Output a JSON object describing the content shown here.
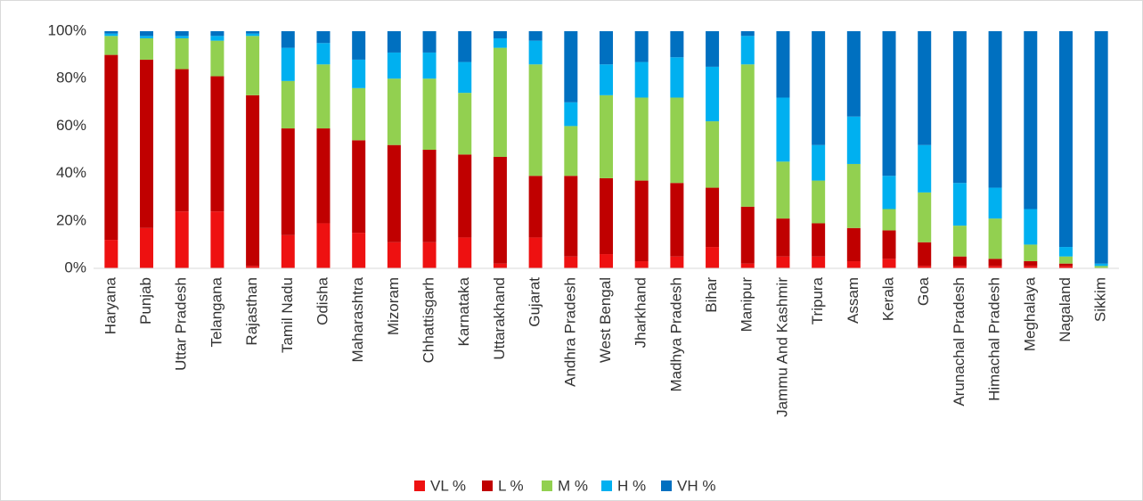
{
  "chart_data": {
    "type": "stacked_bar_100",
    "categories": [
      "Haryana",
      "Punjab",
      "Uttar Pradesh",
      "Telangana",
      "Rajasthan",
      "Tamil Nadu",
      "Odisha",
      "Maharashtra",
      "Mizoram",
      "Chhattisgarh",
      "Karnataka",
      "Uttarakhand",
      "Gujarat",
      "Andhra Pradesh",
      "West Bengal",
      "Jharkhand",
      "Madhya Pradesh",
      "Bihar",
      "Manipur",
      "Jammu And Kashmir",
      "Tripura",
      "Assam",
      "Kerala",
      "Goa",
      "Arunachal Pradesh",
      "Himachal Pradesh",
      "Meghalaya",
      "Nagaland",
      "Sikkim"
    ],
    "series": [
      {
        "name": "VL %",
        "color": "#ee1111",
        "values": [
          12,
          17,
          24,
          24,
          1,
          14,
          19,
          15,
          11,
          11,
          13,
          2,
          13,
          5,
          6,
          3,
          5,
          9,
          2,
          5,
          5,
          3,
          4,
          1,
          1,
          1,
          1,
          1,
          0
        ]
      },
      {
        "name": "L %",
        "color": "#c00000",
        "values": [
          78,
          71,
          60,
          57,
          72,
          45,
          40,
          39,
          41,
          39,
          35,
          45,
          26,
          34,
          32,
          34,
          31,
          25,
          24,
          16,
          14,
          14,
          12,
          10,
          4,
          3,
          2,
          1,
          0
        ]
      },
      {
        "name": "M %",
        "color": "#92d050",
        "values": [
          8,
          9,
          13,
          15,
          25,
          20,
          27,
          22,
          28,
          30,
          26,
          46,
          47,
          21,
          35,
          35,
          36,
          28,
          60,
          24,
          18,
          27,
          9,
          21,
          13,
          17,
          7,
          3,
          1
        ]
      },
      {
        "name": "H %",
        "color": "#00b0f0",
        "values": [
          1,
          1,
          1,
          2,
          1,
          14,
          9,
          12,
          11,
          11,
          13,
          4,
          10,
          10,
          13,
          15,
          17,
          23,
          12,
          27,
          15,
          20,
          14,
          20,
          18,
          13,
          15,
          4,
          1
        ]
      },
      {
        "name": "VH %",
        "color": "#0070c0",
        "values": [
          1,
          2,
          2,
          2,
          1,
          7,
          5,
          12,
          9,
          9,
          13,
          3,
          4,
          30,
          14,
          13,
          11,
          15,
          2,
          28,
          48,
          36,
          61,
          48,
          64,
          66,
          75,
          91,
          98
        ]
      }
    ],
    "ylim": [
      0,
      100
    ],
    "yticks": [
      {
        "value": 0,
        "label": "0%"
      },
      {
        "value": 20,
        "label": "20%"
      },
      {
        "value": 40,
        "label": "40%"
      },
      {
        "value": 60,
        "label": "60%"
      },
      {
        "value": 80,
        "label": "80%"
      },
      {
        "value": 100,
        "label": "100%"
      }
    ],
    "legend": "bottom"
  }
}
